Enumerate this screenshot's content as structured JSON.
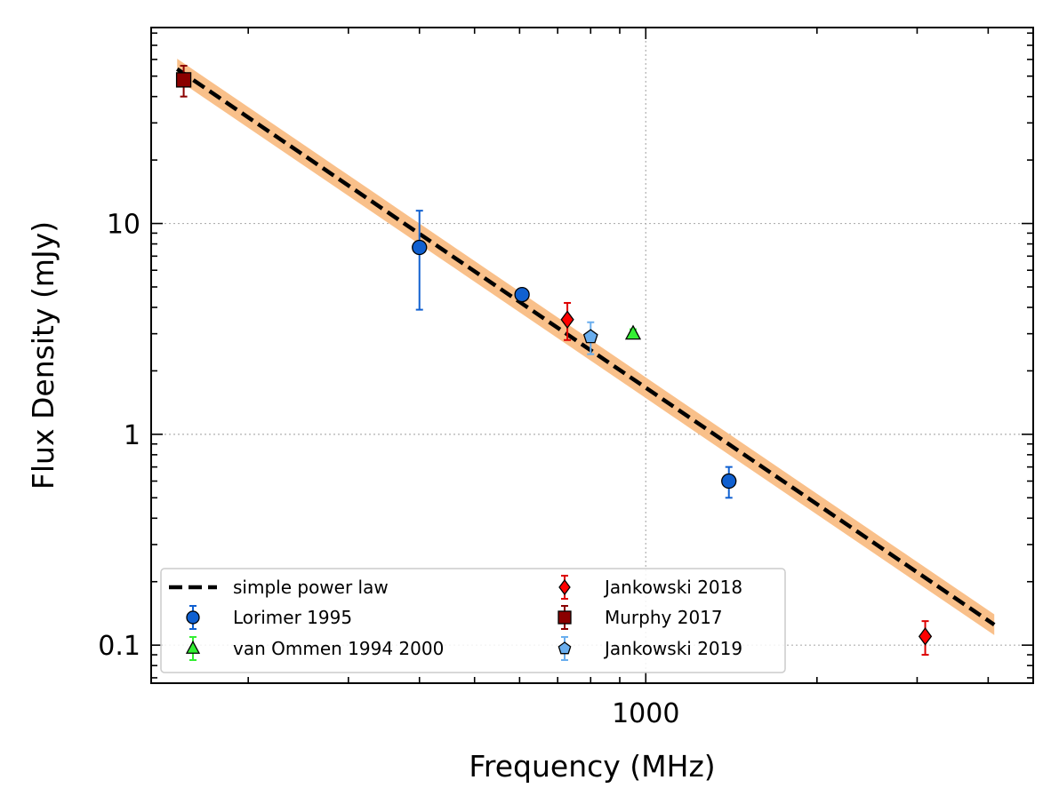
{
  "chart_data": {
    "type": "scatter",
    "xlabel": "Frequency (MHz)",
    "ylabel": "Flux Density (mJy)",
    "xscale": "log",
    "yscale": "log",
    "xlim": [
      135,
      4800
    ],
    "ylim": [
      0.066,
      85
    ],
    "grid": true,
    "legend_position": "lower-left",
    "x_ticks": [
      {
        "value": 1000,
        "label": "1000"
      }
    ],
    "y_ticks": [
      {
        "value": 0.1,
        "label": "0.1"
      },
      {
        "value": 1,
        "label": "1"
      },
      {
        "value": 10,
        "label": "10"
      }
    ],
    "fit": {
      "name": "simple power law",
      "x_range": [
        150,
        4100
      ],
      "y_at_min": 54,
      "y_at_max": 0.125,
      "uncertainty_fraction": 0.12,
      "line_color": "#000000",
      "band_color": "#f9c08a"
    },
    "series": [
      {
        "name": "Lorimer 1995",
        "marker": "circle",
        "color": "#1060d0",
        "errcolor": "#1060d0",
        "points": [
          {
            "x": 400,
            "y": 7.7,
            "ylo": 3.9,
            "yhi": 11.5
          },
          {
            "x": 606,
            "y": 4.6,
            "ylo": 4.4,
            "yhi": 4.8
          },
          {
            "x": 1400,
            "y": 0.6,
            "ylo": 0.5,
            "yhi": 0.7
          }
        ]
      },
      {
        "name": "van Ommen 1994 2000",
        "marker": "triangle",
        "color": "#33ee33",
        "errcolor": "#33ee33",
        "points": [
          {
            "x": 950,
            "y": 3.0,
            "ylo": 2.85,
            "yhi": 3.15
          }
        ]
      },
      {
        "name": "Jankowski 2018",
        "marker": "diamond",
        "color": "#ff0000",
        "errcolor": "#dd0000",
        "points": [
          {
            "x": 728,
            "y": 3.5,
            "ylo": 2.8,
            "yhi": 4.2
          },
          {
            "x": 3100,
            "y": 0.11,
            "ylo": 0.09,
            "yhi": 0.13
          }
        ]
      },
      {
        "name": "Murphy 2017",
        "marker": "square",
        "color": "#8b0000",
        "errcolor": "#8b0000",
        "points": [
          {
            "x": 154,
            "y": 48,
            "ylo": 40,
            "yhi": 56
          }
        ]
      },
      {
        "name": "Jankowski 2019",
        "marker": "pentagon",
        "color": "#6aaeee",
        "errcolor": "#6aaeee",
        "points": [
          {
            "x": 800,
            "y": 2.9,
            "ylo": 2.4,
            "yhi": 3.4
          }
        ]
      }
    ]
  }
}
